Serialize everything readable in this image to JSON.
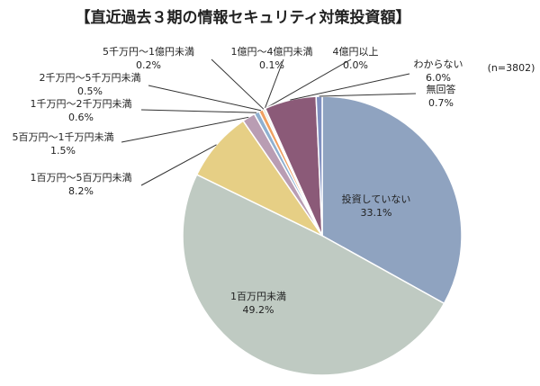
{
  "chart_data": {
    "type": "pie",
    "title": "【直近過去３期の情報セキュリティ対策投資額】",
    "annotation": "(n=3802)",
    "categories": [
      "投資していない",
      "1百万円未満",
      "1百万円～5百万円未満",
      "5百万円～1千万円未満",
      "1千万円～2千万円未満",
      "2千万円～5千万円未満",
      "5千万円～1億円未満",
      "1億円～4億円未満",
      "4億円以上",
      "わからない",
      "無回答"
    ],
    "values": [
      33.1,
      49.2,
      8.2,
      1.5,
      0.6,
      0.5,
      0.2,
      0.1,
      0.0,
      6.0,
      0.7
    ],
    "value_labels": [
      "33.1%",
      "49.2%",
      "8.2%",
      "1.5%",
      "0.6%",
      "0.5%",
      "0.2%",
      "0.1%",
      "0.0%",
      "6.0%",
      "0.7%"
    ],
    "colors": [
      "#8fa3c0",
      "#bfcac2",
      "#e6cf85",
      "#b99db3",
      "#8fb0d0",
      "#f0a060",
      "#a0c080",
      "#d0a0c0",
      "#c0c0c0",
      "#8b5a78",
      "#7f8fc0"
    ]
  }
}
